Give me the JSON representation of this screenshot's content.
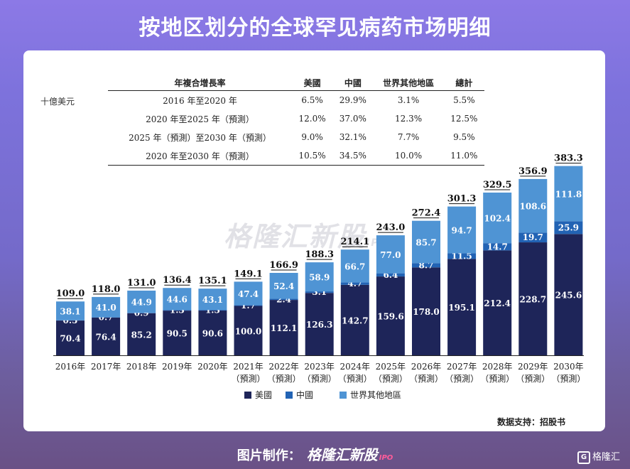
{
  "page": {
    "title": "按地区划分的全球罕见病药市场明细",
    "unit_label": "十億美元",
    "source_label": "数据支持：招股书",
    "footer_prefix": "图片制作：",
    "footer_brand": "格隆汇新股",
    "footer_ipo": "IPO",
    "watermark_text": "格隆汇新股",
    "watermark_ipo": "IPO",
    "corner_logo_letter": "G",
    "corner_brand": "格隆汇"
  },
  "cagr_table": {
    "headers": [
      "年複合增長率",
      "美國",
      "中國",
      "世界其他地區",
      "總計"
    ],
    "rows": [
      {
        "period": "2016 年至2020 年",
        "us": "6.5%",
        "china": "29.9%",
        "row": "3.1%",
        "total": "5.5%"
      },
      {
        "period": "2020 年至2025 年（預測）",
        "us": "12.0%",
        "china": "37.0%",
        "row": "12.3%",
        "total": "12.5%"
      },
      {
        "period": "2025 年（預測）至2030 年（預測）",
        "us": "9.0%",
        "china": "32.1%",
        "row": "7.7%",
        "total": "9.5%"
      },
      {
        "period": "2020 年至2030 年（預測）",
        "us": "10.5%",
        "china": "34.5%",
        "row": "10.0%",
        "total": "11.0%"
      }
    ]
  },
  "chart_data": {
    "type": "bar",
    "stacked": true,
    "categories": [
      "2016年",
      "2017年",
      "2018年",
      "2019年",
      "2020年",
      "2021年",
      "2022年",
      "2023年",
      "2024年",
      "2025年",
      "2026年",
      "2027年",
      "2028年",
      "2029年",
      "2030年"
    ],
    "category_sublabels": [
      "",
      "",
      "",
      "",
      "",
      "（預測）",
      "（預測）",
      "（預測）",
      "（預測）",
      "（預測）",
      "（預測）",
      "（預測）",
      "（預測）",
      "（預測）",
      "（預測）"
    ],
    "series": [
      {
        "name": "美國",
        "color": "#1e2559",
        "values": [
          70.4,
          76.4,
          85.2,
          90.5,
          90.6,
          100.0,
          112.1,
          126.3,
          142.7,
          159.6,
          178.0,
          195.1,
          212.4,
          228.7,
          245.6
        ]
      },
      {
        "name": "中國",
        "color": "#2263b4",
        "values": [
          0.5,
          0.7,
          0.9,
          1.3,
          1.3,
          1.7,
          2.4,
          3.1,
          4.7,
          6.4,
          8.7,
          11.5,
          14.7,
          19.7,
          25.9
        ]
      },
      {
        "name": "世界其他地區",
        "color": "#4f94d4",
        "values": [
          38.1,
          41.0,
          44.9,
          44.6,
          43.1,
          47.4,
          52.4,
          58.9,
          66.7,
          77.0,
          85.7,
          94.7,
          102.4,
          108.6,
          111.8
        ]
      }
    ],
    "totals": [
      109.0,
      118.0,
      131.0,
      136.4,
      135.1,
      149.1,
      166.9,
      188.3,
      214.1,
      243.0,
      272.4,
      301.3,
      329.5,
      356.9,
      383.3
    ],
    "legend_position": "bottom",
    "grid": false
  }
}
